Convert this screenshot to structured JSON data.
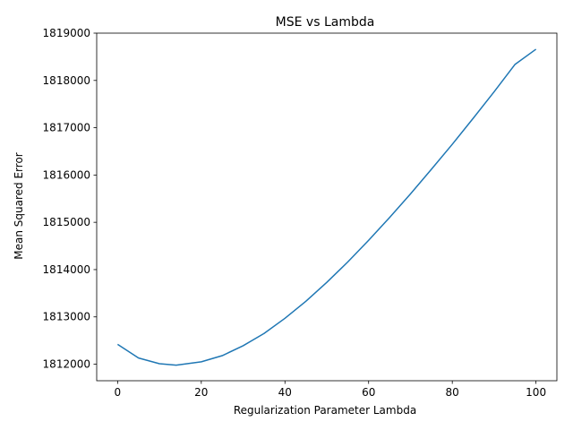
{
  "chart_data": {
    "type": "line",
    "title": "MSE vs Lambda",
    "xlabel": "Regularization Parameter Lambda",
    "ylabel": "Mean Squared Error",
    "xlim": [
      -5,
      105
    ],
    "ylim": [
      1811650,
      1819000
    ],
    "xticks": [
      0,
      20,
      40,
      60,
      80,
      100
    ],
    "yticks": [
      1812000,
      1813000,
      1814000,
      1815000,
      1816000,
      1817000,
      1818000,
      1819000
    ],
    "grid": false,
    "series": [
      {
        "color": "#1f77b4",
        "x": [
          0,
          5,
          10,
          14,
          20,
          25,
          30,
          35,
          40,
          45,
          50,
          55,
          60,
          65,
          70,
          75,
          80,
          85,
          90,
          95,
          100
        ],
        "y": [
          1812420,
          1812130,
          1812010,
          1811980,
          1812050,
          1812180,
          1812390,
          1812650,
          1812970,
          1813330,
          1813730,
          1814160,
          1814620,
          1815100,
          1815600,
          1816120,
          1816650,
          1817200,
          1817760,
          1818340,
          1818660
        ]
      }
    ]
  }
}
